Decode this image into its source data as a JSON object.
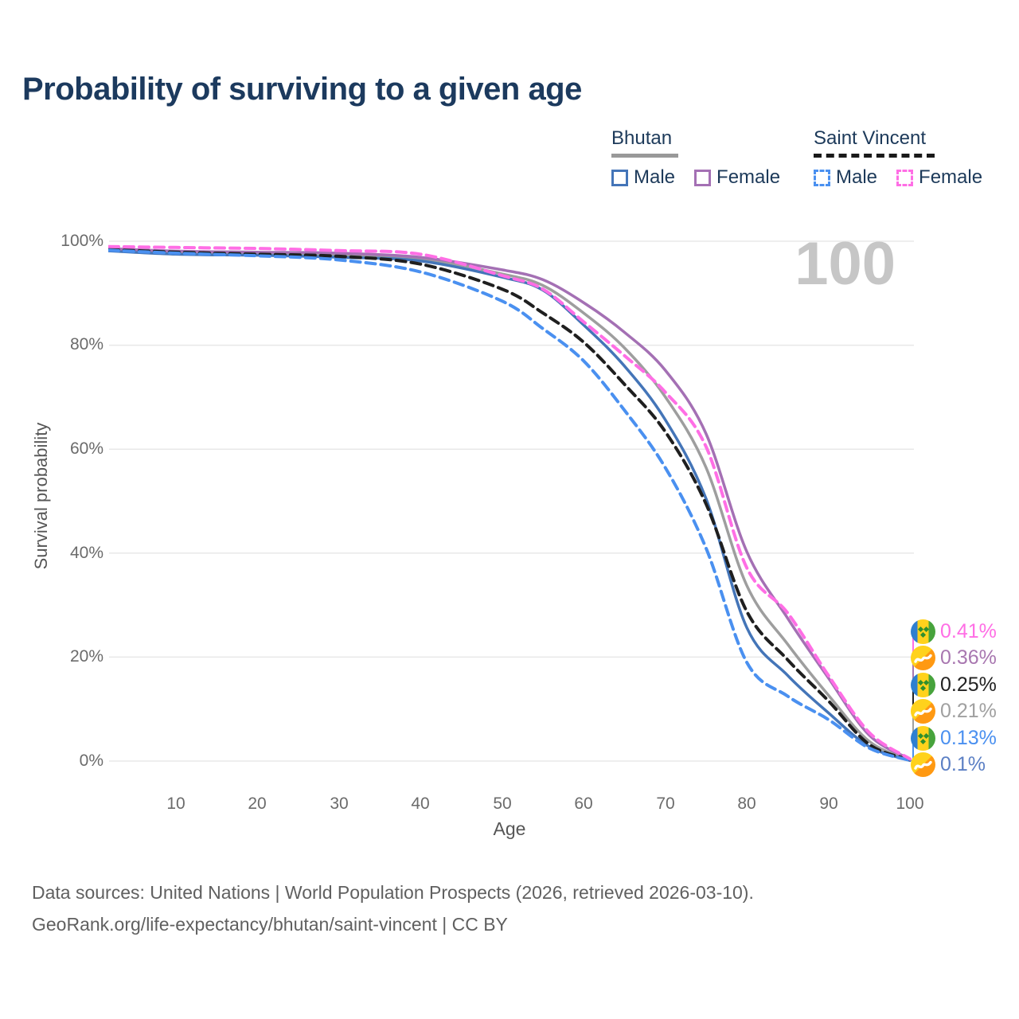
{
  "title": "Probability of surviving to a given age",
  "watermark": "100",
  "legend": {
    "groups": [
      {
        "name": "Bhutan",
        "line_style": "solid",
        "rule_color": "#999999",
        "items": [
          {
            "label": "Male",
            "color": "#4475b8"
          },
          {
            "label": "Female",
            "color": "#a470b4"
          }
        ]
      },
      {
        "name": "Saint Vincent",
        "line_style": "dashed",
        "rule_color": "#1a1a1a",
        "items": [
          {
            "label": "Male",
            "color": "#4a90f0"
          },
          {
            "label": "Female",
            "color": "#ff6ee5"
          }
        ]
      }
    ]
  },
  "axes": {
    "y_label": "Survival probability",
    "x_label": "Age",
    "y_ticks": [
      "100%",
      "80%",
      "60%",
      "40%",
      "20%",
      "0%"
    ],
    "x_ticks": [
      "10",
      "20",
      "30",
      "40",
      "50",
      "60",
      "70",
      "80",
      "90",
      "100"
    ]
  },
  "end_labels": [
    {
      "flag": "saint-vincent",
      "value": "0.41%",
      "color": "#ff6ee5"
    },
    {
      "flag": "bhutan",
      "value": "0.36%",
      "color": "#a877b0"
    },
    {
      "flag": "saint-vincent",
      "value": "0.25%",
      "color": "#222222"
    },
    {
      "flag": "bhutan",
      "value": "0.21%",
      "color": "#a0a0a0"
    },
    {
      "flag": "saint-vincent",
      "value": "0.13%",
      "color": "#4a90f0"
    },
    {
      "flag": "bhutan",
      "value": "0.1%",
      "color": "#5b7fc4"
    }
  ],
  "footer": {
    "line1": "Data sources: United Nations | World Population Prospects (2026, retrieved 2026-03-10).",
    "line2": "GeoRank.org/life-expectancy/bhutan/saint-vincent | CC BY"
  },
  "chart_data": {
    "type": "line",
    "title": "Probability of surviving to a given age",
    "xlabel": "Age",
    "ylabel": "Survival probability",
    "xlim": [
      0,
      100
    ],
    "ylim": [
      0,
      100
    ],
    "y_tick_format": "percent",
    "grid": "horizontal",
    "legend_position": "top-right",
    "x": [
      0,
      10,
      20,
      30,
      40,
      50,
      55,
      60,
      65,
      70,
      75,
      80,
      85,
      90,
      95,
      100
    ],
    "series": [
      {
        "name": "Bhutan (combined, unlabeled)",
        "country": "Bhutan",
        "color": "#9e9e9e",
        "dash": false,
        "end_label": "0.21%",
        "values": [
          98.6,
          98.0,
          97.7,
          97.4,
          96.7,
          93.7,
          91.5,
          86.2,
          79.5,
          70.1,
          56.5,
          33.8,
          22.5,
          12.7,
          3.8,
          0.21
        ]
      },
      {
        "name": "Bhutan Male",
        "country": "Bhutan",
        "color": "#4475b8",
        "dash": false,
        "end_label": "0.1%",
        "values": [
          98.3,
          97.5,
          97.3,
          96.9,
          96.2,
          93.1,
          90.6,
          83.9,
          76.0,
          65.7,
          50.5,
          25.7,
          16.5,
          9.3,
          2.8,
          0.1
        ]
      },
      {
        "name": "Bhutan Female",
        "country": "Bhutan",
        "color": "#a470b4",
        "dash": false,
        "end_label": "0.36%",
        "values": [
          98.7,
          98.1,
          97.9,
          97.7,
          96.9,
          94.5,
          92.6,
          88.2,
          82.5,
          75.2,
          63.0,
          40.3,
          27.5,
          16.0,
          5.0,
          0.36
        ]
      },
      {
        "name": "Saint Vincent (combined, unlabeled)",
        "country": "Saint Vincent",
        "color": "#1f1f1f",
        "dash": true,
        "end_label": "0.25%",
        "values": [
          98.5,
          97.9,
          97.5,
          97.1,
          95.6,
          90.8,
          86.2,
          80.6,
          72.5,
          63.4,
          49.5,
          28.8,
          19.5,
          11.6,
          3.2,
          0.25
        ]
      },
      {
        "name": "Saint Vincent Male",
        "country": "Saint Vincent",
        "color": "#4a90f0",
        "dash": true,
        "end_label": "0.13%",
        "values": [
          98.4,
          97.7,
          97.2,
          96.4,
          94.1,
          88.5,
          83.2,
          77.0,
          67.5,
          56.5,
          41.0,
          19.0,
          12.5,
          8.0,
          2.5,
          0.13
        ]
      },
      {
        "name": "Saint Vincent Female",
        "country": "Saint Vincent",
        "color": "#ff6ee5",
        "dash": true,
        "end_label": "0.41%",
        "values": [
          99.0,
          98.8,
          98.6,
          98.2,
          97.5,
          93.4,
          90.8,
          84.5,
          78.0,
          71.0,
          60.5,
          37.2,
          28.5,
          16.5,
          5.5,
          0.41
        ]
      }
    ]
  }
}
